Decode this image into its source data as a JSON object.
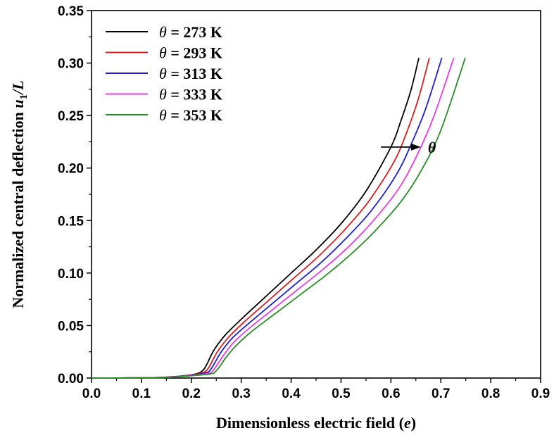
{
  "chart_data": {
    "type": "line",
    "xlabel": "Dimensionless electric field (e)",
    "xlabel_main": "Dimensionless electric field (",
    "xlabel_var": "e",
    "xlabel_close": ")",
    "ylabel": "Normalized central deflection u1/L",
    "ylabel_main": "Normalized central deflection ",
    "ylabel_var": "u",
    "ylabel_sub": "1",
    "ylabel_tail": "/L",
    "xlim": [
      0.0,
      0.9
    ],
    "ylim": [
      0.0,
      0.35
    ],
    "xticks": [
      "0.0",
      "0.1",
      "0.2",
      "0.3",
      "0.4",
      "0.5",
      "0.6",
      "0.7",
      "0.8",
      "0.9"
    ],
    "yticks": [
      "0.00",
      "0.05",
      "0.10",
      "0.15",
      "0.20",
      "0.25",
      "0.30",
      "0.35"
    ],
    "legend_position": "top-left",
    "annotation": {
      "text": "θ",
      "arrow_from": [
        0.58,
        0.22
      ],
      "arrow_to": [
        0.66,
        0.22
      ]
    },
    "series": [
      {
        "name": "θ = 273 K",
        "var": "θ",
        "value_text": " = 273 K",
        "color": "#000000",
        "x": [
          0.0,
          0.1,
          0.15,
          0.2,
          0.22,
          0.23,
          0.24,
          0.25,
          0.27,
          0.3,
          0.35,
          0.4,
          0.45,
          0.5,
          0.55,
          0.6,
          0.62,
          0.64,
          0.656
        ],
        "y": [
          0.0,
          0.0002,
          0.0008,
          0.003,
          0.006,
          0.012,
          0.022,
          0.03,
          0.042,
          0.056,
          0.078,
          0.1,
          0.122,
          0.147,
          0.178,
          0.22,
          0.245,
          0.274,
          0.305
        ]
      },
      {
        "name": "θ = 293 K",
        "var": "θ",
        "value_text": " = 293 K",
        "color": "#d42020",
        "x": [
          0.0,
          0.1,
          0.15,
          0.2,
          0.225,
          0.235,
          0.245,
          0.255,
          0.275,
          0.305,
          0.355,
          0.405,
          0.455,
          0.505,
          0.555,
          0.605,
          0.63,
          0.655,
          0.677
        ],
        "y": [
          0.0,
          0.0002,
          0.0008,
          0.0028,
          0.0055,
          0.01,
          0.019,
          0.027,
          0.039,
          0.053,
          0.074,
          0.095,
          0.116,
          0.14,
          0.168,
          0.205,
          0.232,
          0.266,
          0.305
        ]
      },
      {
        "name": "θ = 313 K",
        "var": "θ",
        "value_text": " = 313 K",
        "color": "#2020c8",
        "x": [
          0.0,
          0.1,
          0.15,
          0.2,
          0.23,
          0.24,
          0.25,
          0.26,
          0.28,
          0.31,
          0.36,
          0.41,
          0.46,
          0.51,
          0.56,
          0.61,
          0.64,
          0.67,
          0.702
        ],
        "y": [
          0.0,
          0.0002,
          0.0007,
          0.0026,
          0.005,
          0.009,
          0.017,
          0.025,
          0.037,
          0.05,
          0.07,
          0.09,
          0.11,
          0.133,
          0.159,
          0.193,
          0.222,
          0.257,
          0.305
        ]
      },
      {
        "name": "θ = 333 K",
        "var": "θ",
        "value_text": " = 333 K",
        "color": "#e040e0",
        "x": [
          0.0,
          0.1,
          0.15,
          0.2,
          0.235,
          0.245,
          0.255,
          0.265,
          0.285,
          0.315,
          0.365,
          0.415,
          0.465,
          0.515,
          0.565,
          0.615,
          0.65,
          0.685,
          0.726
        ],
        "y": [
          0.0,
          0.0002,
          0.0006,
          0.0024,
          0.0045,
          0.008,
          0.015,
          0.022,
          0.034,
          0.047,
          0.066,
          0.085,
          0.104,
          0.125,
          0.15,
          0.18,
          0.21,
          0.248,
          0.305
        ]
      },
      {
        "name": "θ = 353 K",
        "var": "θ",
        "value_text": " = 353 K",
        "color": "#2a8a2a",
        "x": [
          0.0,
          0.1,
          0.15,
          0.2,
          0.24,
          0.25,
          0.26,
          0.27,
          0.29,
          0.32,
          0.37,
          0.42,
          0.47,
          0.52,
          0.57,
          0.62,
          0.66,
          0.7,
          0.749
        ],
        "y": [
          0.0,
          0.0002,
          0.0006,
          0.0022,
          0.004,
          0.007,
          0.013,
          0.02,
          0.031,
          0.044,
          0.062,
          0.08,
          0.098,
          0.118,
          0.141,
          0.168,
          0.197,
          0.236,
          0.305
        ]
      }
    ]
  }
}
